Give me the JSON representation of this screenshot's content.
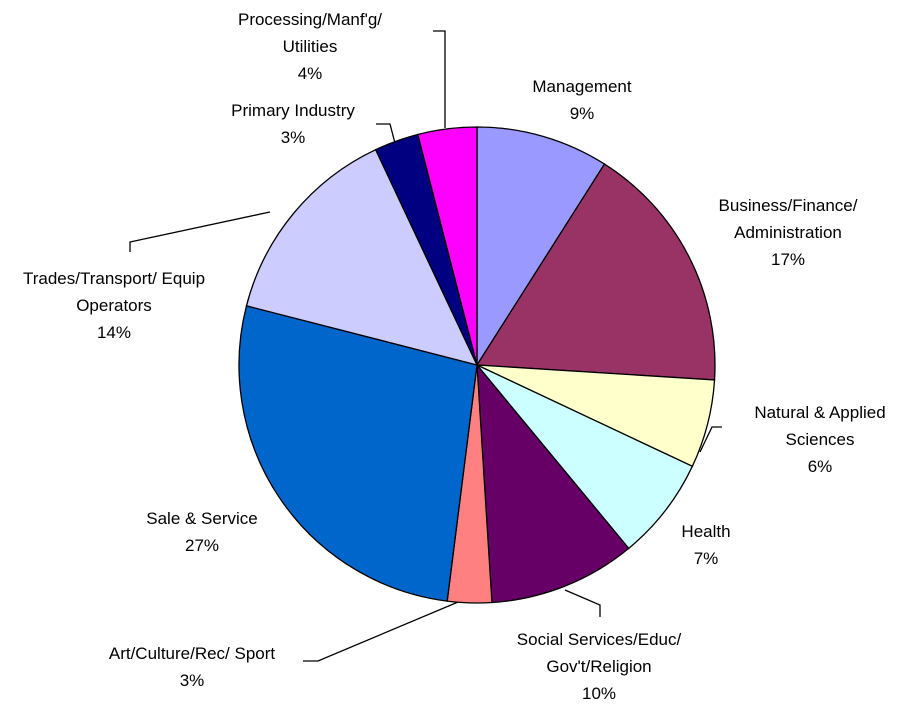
{
  "chart_data": {
    "type": "pie",
    "categories": [
      "Management",
      "Business/Finance/\nAdministration",
      "Natural & Applied\nSciences",
      "Health",
      "Social Services/Educ/\nGov't/Religion",
      "Art/Culture/Rec/ Sport",
      "Sale & Service",
      "Trades/Transport/ Equip\nOperators",
      "Primary Industry",
      "Processing/Manf'g/\nUtilities"
    ],
    "values": [
      9,
      17,
      6,
      7,
      10,
      3,
      27,
      14,
      3,
      4
    ],
    "value_labels": [
      "9%",
      "17%",
      "6%",
      "7%",
      "10%",
      "3%",
      "27%",
      "14%",
      "3%",
      "4%"
    ],
    "colors": [
      "#9999ff",
      "#993366",
      "#ffffcc",
      "#ccffff",
      "#660066",
      "#ff8080",
      "#0066cc",
      "#ccccff",
      "#000080",
      "#ff00ff"
    ]
  }
}
